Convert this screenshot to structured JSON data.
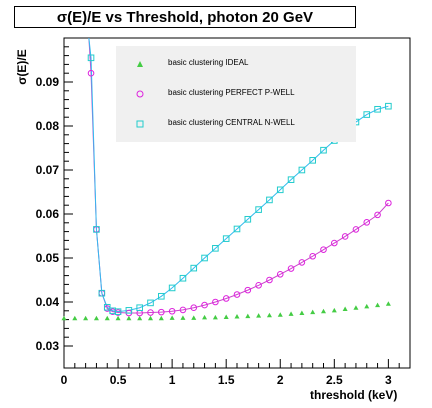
{
  "chart_data": {
    "type": "scatter",
    "title": "σ(E)/E vs Threshold, photon 20 GeV",
    "xlabel": "threshold (keV)",
    "ylabel": "σ(E)/E",
    "xlim": [
      0,
      3.2
    ],
    "ylim": [
      0.025,
      0.1
    ],
    "xticks": [
      "0",
      "0.5",
      "1",
      "1.5",
      "2",
      "2.5",
      "3"
    ],
    "yticks": [
      "0.03",
      "0.04",
      "0.05",
      "0.06",
      "0.07",
      "0.08",
      "0.09"
    ],
    "legend_position": "top-right",
    "series": [
      {
        "name": "basic clustering IDEAL",
        "marker": "triangle",
        "color": "#44cc44",
        "x": [
          0.0,
          0.1,
          0.2,
          0.3,
          0.4,
          0.5,
          0.6,
          0.7,
          0.8,
          0.9,
          1.0,
          1.1,
          1.2,
          1.3,
          1.4,
          1.5,
          1.6,
          1.7,
          1.8,
          1.9,
          2.0,
          2.1,
          2.2,
          2.3,
          2.4,
          2.5,
          2.6,
          2.7,
          2.8,
          2.9,
          3.0
        ],
        "y": [
          0.0363,
          0.0363,
          0.0363,
          0.0363,
          0.0363,
          0.0363,
          0.0363,
          0.0363,
          0.0363,
          0.0363,
          0.0364,
          0.0364,
          0.0364,
          0.0365,
          0.0365,
          0.0366,
          0.0367,
          0.0368,
          0.0369,
          0.037,
          0.0371,
          0.0373,
          0.0375,
          0.0377,
          0.0379,
          0.0381,
          0.0384,
          0.0387,
          0.039,
          0.0393,
          0.0396
        ]
      },
      {
        "name": "basic clustering PERFECT P-WELL",
        "marker": "circle",
        "color": "#dd22dd",
        "x": [
          0.25,
          0.3,
          0.35,
          0.4,
          0.45,
          0.5,
          0.6,
          0.7,
          0.8,
          0.9,
          1.0,
          1.1,
          1.2,
          1.3,
          1.4,
          1.5,
          1.6,
          1.7,
          1.8,
          1.9,
          2.0,
          2.1,
          2.2,
          2.3,
          2.4,
          2.5,
          2.6,
          2.7,
          2.8,
          2.9,
          3.0
        ],
        "y": [
          0.092,
          0.0565,
          0.042,
          0.0385,
          0.0378,
          0.0376,
          0.0375,
          0.0375,
          0.0376,
          0.0377,
          0.0379,
          0.0382,
          0.0387,
          0.0393,
          0.04,
          0.0408,
          0.0417,
          0.0427,
          0.0438,
          0.045,
          0.0463,
          0.0476,
          0.049,
          0.0504,
          0.0519,
          0.0534,
          0.0549,
          0.0565,
          0.0581,
          0.0598,
          0.0625
        ]
      },
      {
        "name": "basic clustering CENTRAL N-WELL",
        "marker": "square",
        "color": "#22cccc",
        "x": [
          0.25,
          0.3,
          0.35,
          0.4,
          0.45,
          0.5,
          0.6,
          0.7,
          0.8,
          0.9,
          1.0,
          1.1,
          1.2,
          1.3,
          1.4,
          1.5,
          1.6,
          1.7,
          1.8,
          1.9,
          2.0,
          2.1,
          2.2,
          2.3,
          2.4,
          2.5,
          2.6,
          2.7,
          2.8,
          2.9,
          3.0
        ],
        "y": [
          0.0955,
          0.0565,
          0.042,
          0.0388,
          0.038,
          0.0378,
          0.0381,
          0.0387,
          0.0398,
          0.0413,
          0.0432,
          0.0454,
          0.0477,
          0.05,
          0.0522,
          0.0544,
          0.0566,
          0.0588,
          0.061,
          0.0632,
          0.0655,
          0.0678,
          0.07,
          0.0722,
          0.0745,
          0.0767,
          0.0789,
          0.0809,
          0.0826,
          0.0838,
          0.0845
        ]
      }
    ]
  }
}
